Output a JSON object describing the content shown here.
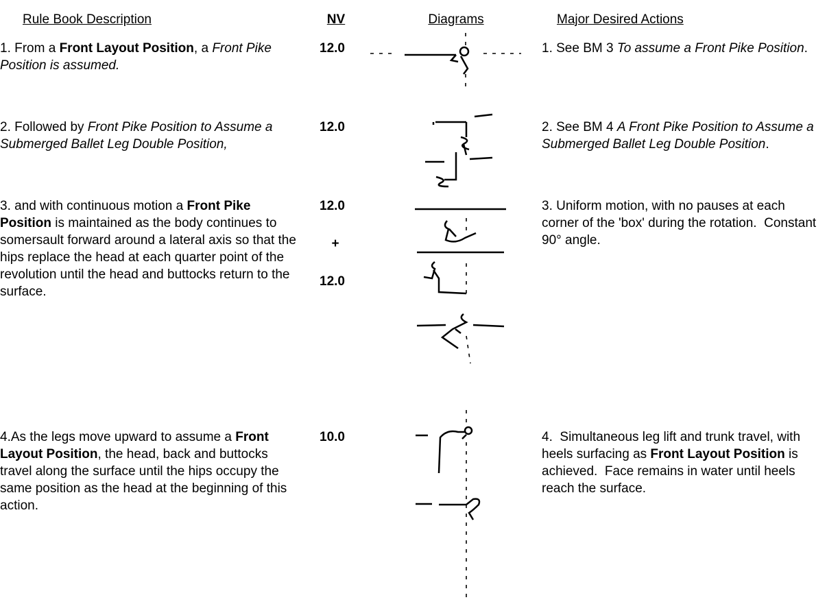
{
  "header": [
    "Rule Book Description",
    "NV",
    "Diagrams",
    "Major Desired Actions"
  ],
  "rows": [
    {
      "description": [
        {
          "text": "1. From a ",
          "style": "normal"
        },
        {
          "text": "Front Layout Position",
          "style": "bold"
        },
        {
          "text": ", a ",
          "style": "normal"
        },
        {
          "text": "Front Pike Position is assumed.",
          "style": "italic"
        }
      ],
      "nv": [
        "12.0"
      ],
      "actions": [
        {
          "text": "1. See BM 3 ",
          "style": "normal"
        },
        {
          "text": "To assume a Front Pike Position",
          "style": "italic"
        },
        {
          "text": ".",
          "style": "normal"
        }
      ]
    },
    {
      "description": [
        {
          "text": "2. Followed by ",
          "style": "normal"
        },
        {
          "text": "Front Pike Position to Assume a Submerged Ballet Leg Double Position,",
          "style": "italic"
        }
      ],
      "nv": [
        "12.0"
      ],
      "actions": [
        {
          "text": "2. See BM 4 ",
          "style": "normal"
        },
        {
          "text": "A Front Pike Position to Assume a Submerged Ballet Leg Double Position",
          "style": "italic"
        },
        {
          "text": ".",
          "style": "normal"
        }
      ]
    },
    {
      "description": [
        {
          "text": "3. and with continuous motion a ",
          "style": "normal"
        },
        {
          "text": "Front Pike Position",
          "style": "bold"
        },
        {
          "text": " is maintained as the body continues to somersault forward around a lateral axis so that the hips replace the head at each quarter point of the revolution until the head and buttocks return to the surface.",
          "style": "normal"
        }
      ],
      "nv": [
        "12.0",
        "+",
        "12.0"
      ],
      "actions": [
        {
          "text": "3. Uniform motion, with no pauses at each corner of the 'box' during the rotation.  Constant 90° angle.",
          "style": "normal"
        }
      ]
    },
    {
      "description": [
        {
          "text": "4.As the legs move upward to assume a ",
          "style": "normal"
        },
        {
          "text": "Front Layout Position",
          "style": "bold"
        },
        {
          "text": ", the head, back and buttocks travel along the surface until the hips occupy the same position as the head at the beginning of this action.",
          "style": "normal"
        }
      ],
      "nv": [
        "10.0"
      ],
      "actions": [
        {
          "text": "4.  Simultaneous leg lift and trunk travel, with heels surfacing as ",
          "style": "normal"
        },
        {
          "text": "Front Layout Position",
          "style": "bold"
        },
        {
          "text": " is achieved.  Face remains in water until heels reach the surface.",
          "style": "normal"
        }
      ]
    }
  ]
}
